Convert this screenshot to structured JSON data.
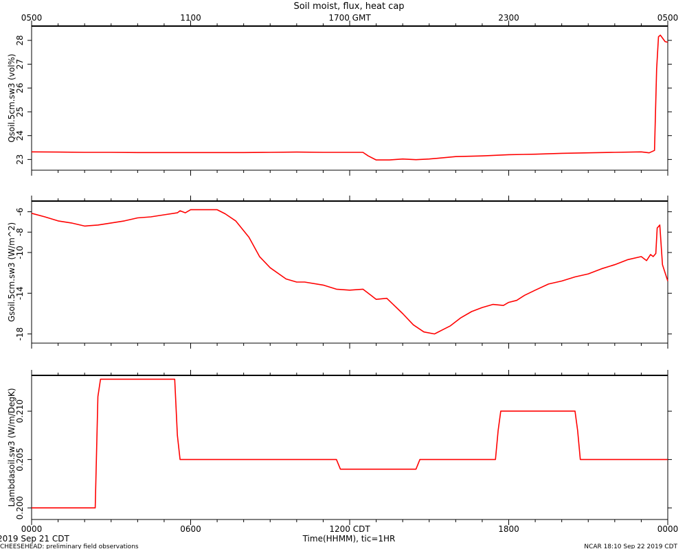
{
  "header": {
    "title": "Soil moist, flux, heat cap",
    "top_ticks": [
      "0500",
      "1100",
      "1700 GMT",
      "2300",
      "0500"
    ]
  },
  "footer": {
    "bottom_ticks": [
      "0000",
      "0600",
      "1200 CDT",
      "1800",
      "0000"
    ],
    "xlabel": "Time(HHMM), tic=1HR",
    "date_left": "2019 Sep 21 CDT",
    "project": "CHEESEHEAD: preliminary field observations",
    "credit": "NCAR 18:10 Sep 22 2019 CDT"
  },
  "colors": {
    "series": "#ff0000",
    "axes": "#000000"
  },
  "chart_data": [
    {
      "type": "line",
      "id": "qsoil",
      "ylabel": "Qsoil.5cm.sw3 (vol%)",
      "xlim": [
        0,
        24
      ],
      "ylim": [
        22.55,
        28.6
      ],
      "yticks": [
        23,
        24,
        25,
        26,
        27,
        28
      ],
      "ytick_labels": [
        "23",
        "24",
        "25",
        "26",
        "27",
        "28"
      ],
      "x": [
        0,
        1,
        2,
        3,
        4,
        5,
        6,
        7,
        8,
        9,
        10,
        11,
        12.5,
        12.7,
        13.0,
        13.5,
        14.0,
        14.5,
        15,
        16,
        17,
        18,
        19,
        20,
        21,
        22,
        23,
        23.3,
        23.5,
        23.58,
        23.65,
        23.72,
        23.8,
        23.9,
        24
      ],
      "values": [
        23.32,
        23.31,
        23.3,
        23.3,
        23.29,
        23.29,
        23.29,
        23.29,
        23.29,
        23.3,
        23.31,
        23.3,
        23.3,
        23.15,
        22.98,
        22.98,
        23.02,
        22.99,
        23.02,
        23.12,
        23.15,
        23.2,
        23.22,
        23.26,
        23.28,
        23.3,
        23.32,
        23.28,
        23.38,
        26.8,
        28.15,
        28.22,
        28.1,
        27.95,
        27.92
      ]
    },
    {
      "type": "line",
      "id": "gsoil",
      "ylabel": "Gsoil.5cm.sw3 (W/m^2)",
      "xlim": [
        0,
        24
      ],
      "ylim": [
        -18.9,
        -4.95
      ],
      "yticks": [
        -18,
        -14,
        -10,
        -8,
        -6
      ],
      "ytick_labels": [
        "-18",
        "-14",
        "-10",
        "-8",
        "-6"
      ],
      "x": [
        0,
        0.5,
        1.0,
        1.5,
        2.0,
        2.5,
        3.0,
        3.5,
        4.0,
        4.5,
        5.0,
        5.5,
        5.6,
        5.8,
        6.0,
        6.5,
        7.0,
        7.3,
        7.7,
        8.2,
        8.6,
        9.0,
        9.6,
        10.0,
        10.3,
        11.0,
        11.5,
        12.0,
        12.5,
        12.8,
        13.0,
        13.4,
        13.6,
        14.0,
        14.4,
        14.8,
        15.2,
        15.5,
        15.8,
        16.2,
        16.6,
        17.0,
        17.4,
        17.8,
        18.0,
        18.3,
        18.6,
        19.0,
        19.5,
        20.0,
        20.5,
        21.0,
        21.5,
        22.0,
        22.5,
        23.0,
        23.2,
        23.35,
        23.45,
        23.55,
        23.6,
        23.7,
        23.8,
        24
      ],
      "values": [
        -6.15,
        -6.5,
        -6.9,
        -7.1,
        -7.4,
        -7.3,
        -7.1,
        -6.9,
        -6.6,
        -6.5,
        -6.3,
        -6.1,
        -5.9,
        -6.1,
        -5.8,
        -5.8,
        -5.8,
        -6.2,
        -6.9,
        -8.5,
        -10.4,
        -11.5,
        -12.6,
        -12.9,
        -12.9,
        -13.2,
        -13.6,
        -13.7,
        -13.6,
        -14.2,
        -14.6,
        -14.5,
        -15.0,
        -16.0,
        -17.1,
        -17.8,
        -18.0,
        -17.6,
        -17.2,
        -16.4,
        -15.8,
        -15.4,
        -15.1,
        -15.2,
        -14.9,
        -14.7,
        -14.2,
        -13.7,
        -13.1,
        -12.8,
        -12.4,
        -12.1,
        -11.6,
        -11.2,
        -10.7,
        -10.4,
        -10.8,
        -10.2,
        -10.4,
        -10.1,
        -7.6,
        -7.3,
        -11.2,
        -12.8
      ]
    },
    {
      "type": "line",
      "id": "lambda",
      "ylabel": "Lambdasoil.sw3 (W/m/DegK)",
      "xlim": [
        0,
        24
      ],
      "ylim": [
        0.1988,
        0.2137
      ],
      "yticks": [
        0.2,
        0.205,
        0.21
      ],
      "ytick_labels": [
        "0.200",
        "0.205",
        "0.210"
      ],
      "x": [
        0,
        2.4,
        2.5,
        2.6,
        5.4,
        5.5,
        5.6,
        11.5,
        11.65,
        14.5,
        14.65,
        17.5,
        17.6,
        17.7,
        20.5,
        20.6,
        20.7,
        24
      ],
      "values": [
        0.2,
        0.2,
        0.2115,
        0.2133,
        0.2133,
        0.2075,
        0.205,
        0.205,
        0.204,
        0.204,
        0.205,
        0.205,
        0.208,
        0.21,
        0.21,
        0.208,
        0.205,
        0.205
      ]
    }
  ]
}
